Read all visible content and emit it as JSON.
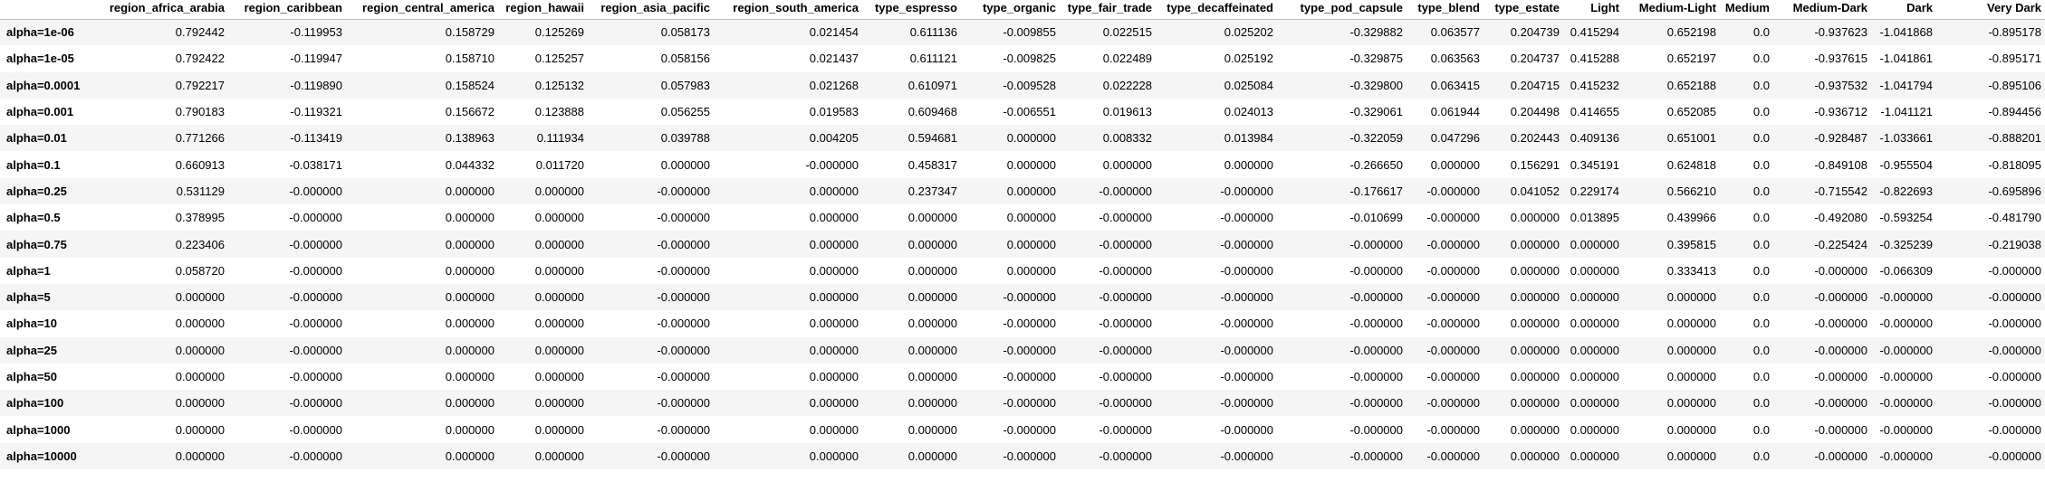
{
  "table": {
    "columns": [
      "",
      "region_africa_arabia",
      "region_caribbean",
      "region_central_america",
      "region_hawaii",
      "region_asia_pacific",
      "region_south_america",
      "type_espresso",
      "type_organic",
      "type_fair_trade",
      "type_decaffeinated",
      "type_pod_capsule",
      "type_blend",
      "type_estate",
      "Light",
      "Medium-Light",
      "Medium",
      "Medium-Dark",
      "Dark",
      "Very Dark"
    ],
    "rows": [
      {
        "label": "alpha=1e-06",
        "values": [
          "0.792442",
          "-0.119953",
          "0.158729",
          "0.125269",
          "0.058173",
          "0.021454",
          "0.611136",
          "-0.009855",
          "0.022515",
          "0.025202",
          "-0.329882",
          "0.063577",
          "0.204739",
          "0.415294",
          "0.652198",
          "0.0",
          "-0.937623",
          "-1.041868",
          "-0.895178"
        ]
      },
      {
        "label": "alpha=1e-05",
        "values": [
          "0.792422",
          "-0.119947",
          "0.158710",
          "0.125257",
          "0.058156",
          "0.021437",
          "0.611121",
          "-0.009825",
          "0.022489",
          "0.025192",
          "-0.329875",
          "0.063563",
          "0.204737",
          "0.415288",
          "0.652197",
          "0.0",
          "-0.937615",
          "-1.041861",
          "-0.895171"
        ]
      },
      {
        "label": "alpha=0.0001",
        "values": [
          "0.792217",
          "-0.119890",
          "0.158524",
          "0.125132",
          "0.057983",
          "0.021268",
          "0.610971",
          "-0.009528",
          "0.022228",
          "0.025084",
          "-0.329800",
          "0.063415",
          "0.204715",
          "0.415232",
          "0.652188",
          "0.0",
          "-0.937532",
          "-1.041794",
          "-0.895106"
        ]
      },
      {
        "label": "alpha=0.001",
        "values": [
          "0.790183",
          "-0.119321",
          "0.156672",
          "0.123888",
          "0.056255",
          "0.019583",
          "0.609468",
          "-0.006551",
          "0.019613",
          "0.024013",
          "-0.329061",
          "0.061944",
          "0.204498",
          "0.414655",
          "0.652085",
          "0.0",
          "-0.936712",
          "-1.041121",
          "-0.894456"
        ]
      },
      {
        "label": "alpha=0.01",
        "values": [
          "0.771266",
          "-0.113419",
          "0.138963",
          "0.111934",
          "0.039788",
          "0.004205",
          "0.594681",
          "0.000000",
          "0.008332",
          "0.013984",
          "-0.322059",
          "0.047296",
          "0.202443",
          "0.409136",
          "0.651001",
          "0.0",
          "-0.928487",
          "-1.033661",
          "-0.888201"
        ]
      },
      {
        "label": "alpha=0.1",
        "values": [
          "0.660913",
          "-0.038171",
          "0.044332",
          "0.011720",
          "0.000000",
          "-0.000000",
          "0.458317",
          "0.000000",
          "0.000000",
          "0.000000",
          "-0.266650",
          "0.000000",
          "0.156291",
          "0.345191",
          "0.624818",
          "0.0",
          "-0.849108",
          "-0.955504",
          "-0.818095"
        ]
      },
      {
        "label": "alpha=0.25",
        "values": [
          "0.531129",
          "-0.000000",
          "0.000000",
          "0.000000",
          "-0.000000",
          "0.000000",
          "0.237347",
          "0.000000",
          "-0.000000",
          "-0.000000",
          "-0.176617",
          "-0.000000",
          "0.041052",
          "0.229174",
          "0.566210",
          "0.0",
          "-0.715542",
          "-0.822693",
          "-0.695896"
        ]
      },
      {
        "label": "alpha=0.5",
        "values": [
          "0.378995",
          "-0.000000",
          "0.000000",
          "0.000000",
          "-0.000000",
          "0.000000",
          "0.000000",
          "0.000000",
          "-0.000000",
          "-0.000000",
          "-0.010699",
          "-0.000000",
          "0.000000",
          "0.013895",
          "0.439966",
          "0.0",
          "-0.492080",
          "-0.593254",
          "-0.481790"
        ]
      },
      {
        "label": "alpha=0.75",
        "values": [
          "0.223406",
          "-0.000000",
          "0.000000",
          "0.000000",
          "-0.000000",
          "0.000000",
          "0.000000",
          "0.000000",
          "-0.000000",
          "-0.000000",
          "-0.000000",
          "-0.000000",
          "0.000000",
          "0.000000",
          "0.395815",
          "0.0",
          "-0.225424",
          "-0.325239",
          "-0.219038"
        ]
      },
      {
        "label": "alpha=1",
        "values": [
          "0.058720",
          "-0.000000",
          "0.000000",
          "0.000000",
          "-0.000000",
          "0.000000",
          "0.000000",
          "0.000000",
          "-0.000000",
          "-0.000000",
          "-0.000000",
          "-0.000000",
          "0.000000",
          "0.000000",
          "0.333413",
          "0.0",
          "-0.000000",
          "-0.066309",
          "-0.000000"
        ]
      },
      {
        "label": "alpha=5",
        "values": [
          "0.000000",
          "-0.000000",
          "0.000000",
          "0.000000",
          "-0.000000",
          "0.000000",
          "0.000000",
          "-0.000000",
          "-0.000000",
          "-0.000000",
          "-0.000000",
          "-0.000000",
          "0.000000",
          "0.000000",
          "0.000000",
          "0.0",
          "-0.000000",
          "-0.000000",
          "-0.000000"
        ]
      },
      {
        "label": "alpha=10",
        "values": [
          "0.000000",
          "-0.000000",
          "0.000000",
          "0.000000",
          "-0.000000",
          "0.000000",
          "0.000000",
          "-0.000000",
          "-0.000000",
          "-0.000000",
          "-0.000000",
          "-0.000000",
          "0.000000",
          "0.000000",
          "0.000000",
          "0.0",
          "-0.000000",
          "-0.000000",
          "-0.000000"
        ]
      },
      {
        "label": "alpha=25",
        "values": [
          "0.000000",
          "-0.000000",
          "0.000000",
          "0.000000",
          "-0.000000",
          "0.000000",
          "0.000000",
          "-0.000000",
          "-0.000000",
          "-0.000000",
          "-0.000000",
          "-0.000000",
          "0.000000",
          "0.000000",
          "0.000000",
          "0.0",
          "-0.000000",
          "-0.000000",
          "-0.000000"
        ]
      },
      {
        "label": "alpha=50",
        "values": [
          "0.000000",
          "-0.000000",
          "0.000000",
          "0.000000",
          "-0.000000",
          "0.000000",
          "0.000000",
          "-0.000000",
          "-0.000000",
          "-0.000000",
          "-0.000000",
          "-0.000000",
          "0.000000",
          "0.000000",
          "0.000000",
          "0.0",
          "-0.000000",
          "-0.000000",
          "-0.000000"
        ]
      },
      {
        "label": "alpha=100",
        "values": [
          "0.000000",
          "-0.000000",
          "0.000000",
          "0.000000",
          "-0.000000",
          "0.000000",
          "0.000000",
          "-0.000000",
          "-0.000000",
          "-0.000000",
          "-0.000000",
          "-0.000000",
          "0.000000",
          "0.000000",
          "0.000000",
          "0.0",
          "-0.000000",
          "-0.000000",
          "-0.000000"
        ]
      },
      {
        "label": "alpha=1000",
        "values": [
          "0.000000",
          "-0.000000",
          "0.000000",
          "0.000000",
          "-0.000000",
          "0.000000",
          "0.000000",
          "-0.000000",
          "-0.000000",
          "-0.000000",
          "-0.000000",
          "-0.000000",
          "0.000000",
          "0.000000",
          "0.000000",
          "0.0",
          "-0.000000",
          "-0.000000",
          "-0.000000"
        ]
      },
      {
        "label": "alpha=10000",
        "values": [
          "0.000000",
          "-0.000000",
          "0.000000",
          "0.000000",
          "-0.000000",
          "0.000000",
          "0.000000",
          "-0.000000",
          "-0.000000",
          "-0.000000",
          "-0.000000",
          "-0.000000",
          "0.000000",
          "0.000000",
          "0.000000",
          "0.0",
          "-0.000000",
          "-0.000000",
          "-0.000000"
        ]
      }
    ]
  }
}
